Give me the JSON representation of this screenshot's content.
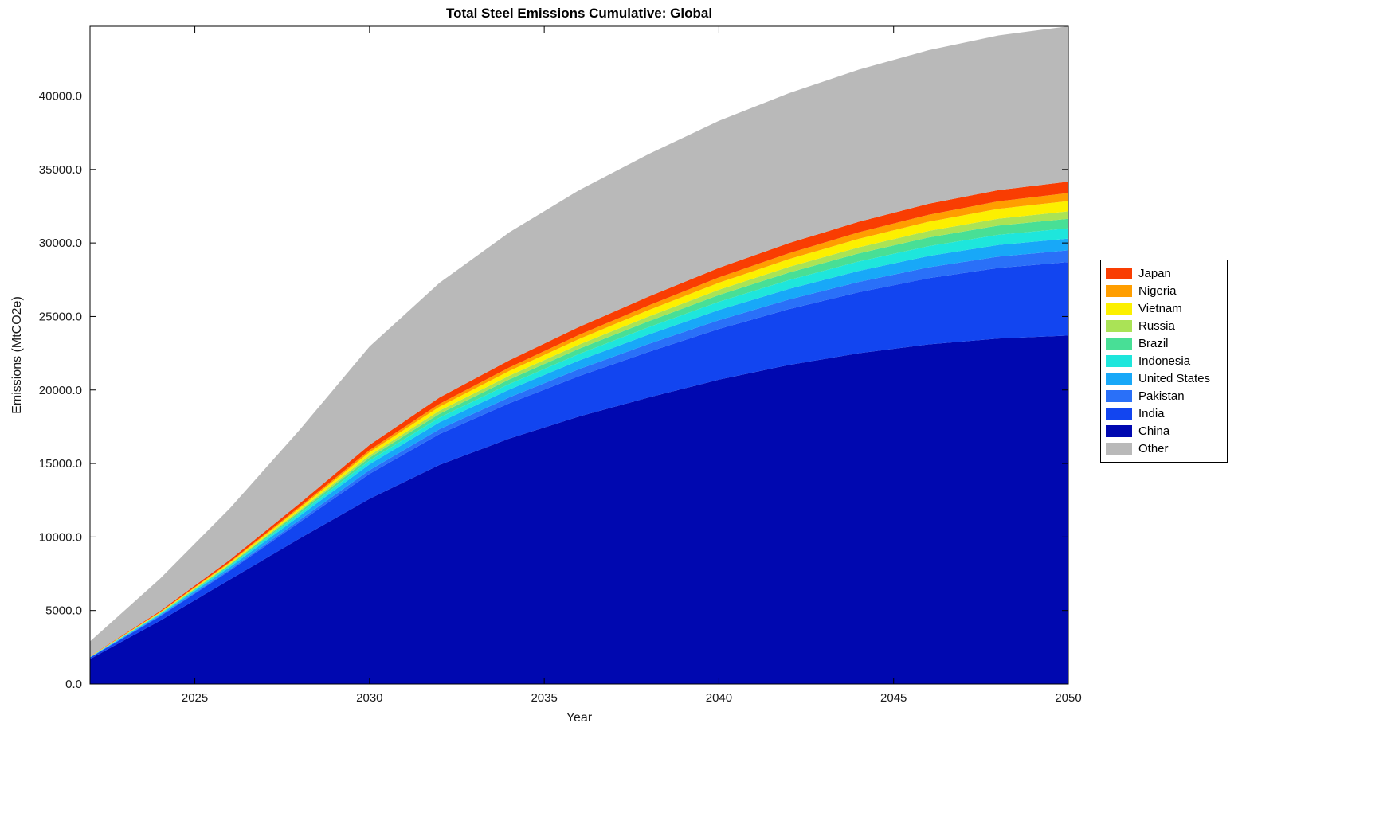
{
  "figure": {
    "background": "#ffffff",
    "axes_color": "#000000",
    "text_color": "#1a1a1a"
  },
  "chart_data": {
    "type": "area",
    "stacked": true,
    "title": "Total Steel Emissions Cumulative: Global",
    "xlabel": "Year",
    "ylabel": "Emissions (MtCO2e)",
    "grid": false,
    "x_range": [
      2022,
      2050
    ],
    "y_range_note": "y axis auto-scaled, top equals total at 2050 (~44700)",
    "x": [
      2022,
      2024,
      2026,
      2028,
      2030,
      2032,
      2034,
      2036,
      2038,
      2040,
      2042,
      2044,
      2046,
      2048,
      2050
    ],
    "x_ticks": [
      2025,
      2030,
      2035,
      2040,
      2045,
      2050
    ],
    "x_tick_labels": [
      "2025",
      "2030",
      "2035",
      "2040",
      "2045",
      "2050"
    ],
    "y_ticks": [
      0,
      5000,
      10000,
      15000,
      20000,
      25000,
      30000,
      35000,
      40000
    ],
    "y_tick_labels": [
      "0.0",
      "5000.0",
      "10000.0",
      "15000.0",
      "20000.0",
      "25000.0",
      "30000.0",
      "35000.0",
      "40000.0"
    ],
    "series": [
      {
        "name": "China",
        "color": "#0008b0",
        "values": [
          1700,
          4300,
          7100,
          9900,
          12600,
          14900,
          16700,
          18200,
          19500,
          20700,
          21700,
          22500,
          23100,
          23500,
          23700
        ]
      },
      {
        "name": "India",
        "color": "#1245f0",
        "values": [
          100,
          300,
          600,
          1100,
          1700,
          2100,
          2400,
          2750,
          3100,
          3450,
          3800,
          4150,
          4500,
          4800,
          5000
        ]
      },
      {
        "name": "Pakistan",
        "color": "#2a70f8",
        "values": [
          10,
          40,
          90,
          160,
          250,
          330,
          400,
          470,
          540,
          600,
          650,
          700,
          740,
          775,
          800
        ]
      },
      {
        "name": "United States",
        "color": "#18a8f8",
        "values": [
          20,
          80,
          160,
          270,
          400,
          470,
          530,
          590,
          640,
          690,
          720,
          750,
          775,
          790,
          800
        ]
      },
      {
        "name": "Indonesia",
        "color": "#1ee6dc",
        "values": [
          10,
          40,
          90,
          160,
          250,
          320,
          380,
          440,
          500,
          560,
          600,
          640,
          670,
          690,
          700
        ]
      },
      {
        "name": "Brazil",
        "color": "#48df96",
        "values": [
          10,
          35,
          75,
          130,
          200,
          260,
          310,
          360,
          410,
          460,
          510,
          550,
          590,
          625,
          650
        ]
      },
      {
        "name": "Russia",
        "color": "#aae356",
        "values": [
          10,
          30,
          60,
          105,
          160,
          210,
          250,
          285,
          320,
          355,
          385,
          415,
          445,
          475,
          500
        ]
      },
      {
        "name": "Vietnam",
        "color": "#fcf000",
        "values": [
          10,
          35,
          75,
          130,
          200,
          265,
          320,
          375,
          430,
          480,
          530,
          575,
          620,
          665,
          700
        ]
      },
      {
        "name": "Nigeria",
        "color": "#ff9e00",
        "values": [
          8,
          25,
          55,
          95,
          150,
          200,
          240,
          280,
          320,
          360,
          400,
          440,
          480,
          515,
          550
        ]
      },
      {
        "name": "Japan",
        "color": "#f93d02",
        "values": [
          20,
          70,
          140,
          235,
          350,
          430,
          490,
          545,
          600,
          650,
          690,
          720,
          745,
          760,
          770
        ]
      },
      {
        "name": "Other",
        "color": "#b9b9b9",
        "values": [
          1000,
          2200,
          3500,
          5000,
          6700,
          7800,
          8700,
          9300,
          9700,
          10000,
          10200,
          10350,
          10450,
          10520,
          10570
        ]
      }
    ],
    "legend": {
      "position": "right-outside",
      "entries": [
        "Japan",
        "Nigeria",
        "Vietnam",
        "Russia",
        "Brazil",
        "Indonesia",
        "United States",
        "Pakistan",
        "India",
        "China",
        "Other"
      ]
    }
  }
}
